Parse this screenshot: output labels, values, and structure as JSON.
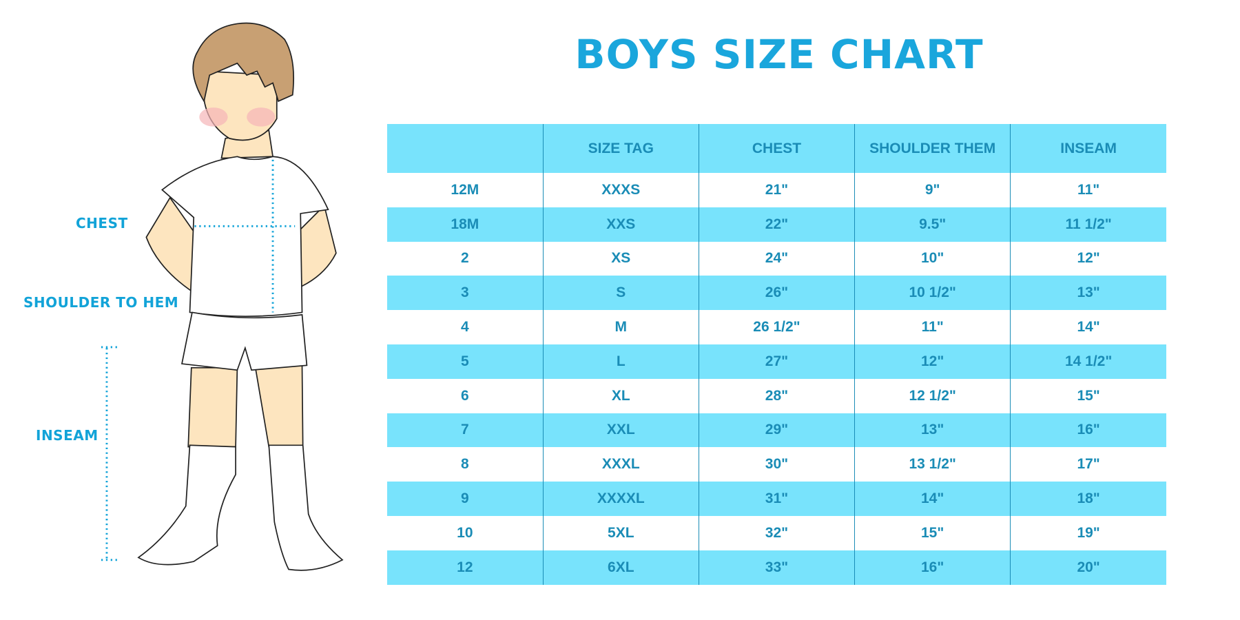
{
  "title": "BOYS SIZE CHART",
  "figure_labels": {
    "chest": "CHEST",
    "shoulder_to_hem": "SHOULDER TO HEM",
    "inseam": "INSEAM"
  },
  "colors": {
    "accent": "#1aa6dc",
    "header_bg": "#78e3fc",
    "table_text": "#1a8cb6"
  },
  "table": {
    "headers": [
      "",
      "SIZE TAG",
      "CHEST",
      "SHOULDER THEM",
      "INSEAM"
    ],
    "rows": [
      [
        "12M",
        "XXXS",
        "21\"",
        "9\"",
        "11\""
      ],
      [
        "18M",
        "XXS",
        "22\"",
        "9.5\"",
        "11 1/2\""
      ],
      [
        "2",
        "XS",
        "24\"",
        "10\"",
        "12\""
      ],
      [
        "3",
        "S",
        "26\"",
        "10 1/2\"",
        "13\""
      ],
      [
        "4",
        "M",
        "26 1/2\"",
        "11\"",
        "14\""
      ],
      [
        "5",
        "L",
        "27\"",
        "12\"",
        "14 1/2\""
      ],
      [
        "6",
        "XL",
        "28\"",
        "12 1/2\"",
        "15\""
      ],
      [
        "7",
        "XXL",
        "29\"",
        "13\"",
        "16\""
      ],
      [
        "8",
        "XXXL",
        "30\"",
        "13 1/2\"",
        "17\""
      ],
      [
        "9",
        "XXXXL",
        "31\"",
        "14\"",
        "18\""
      ],
      [
        "10",
        "5XL",
        "32\"",
        "15\"",
        "19\""
      ],
      [
        "12",
        "6XL",
        "33\"",
        "16\"",
        "20\""
      ]
    ]
  }
}
